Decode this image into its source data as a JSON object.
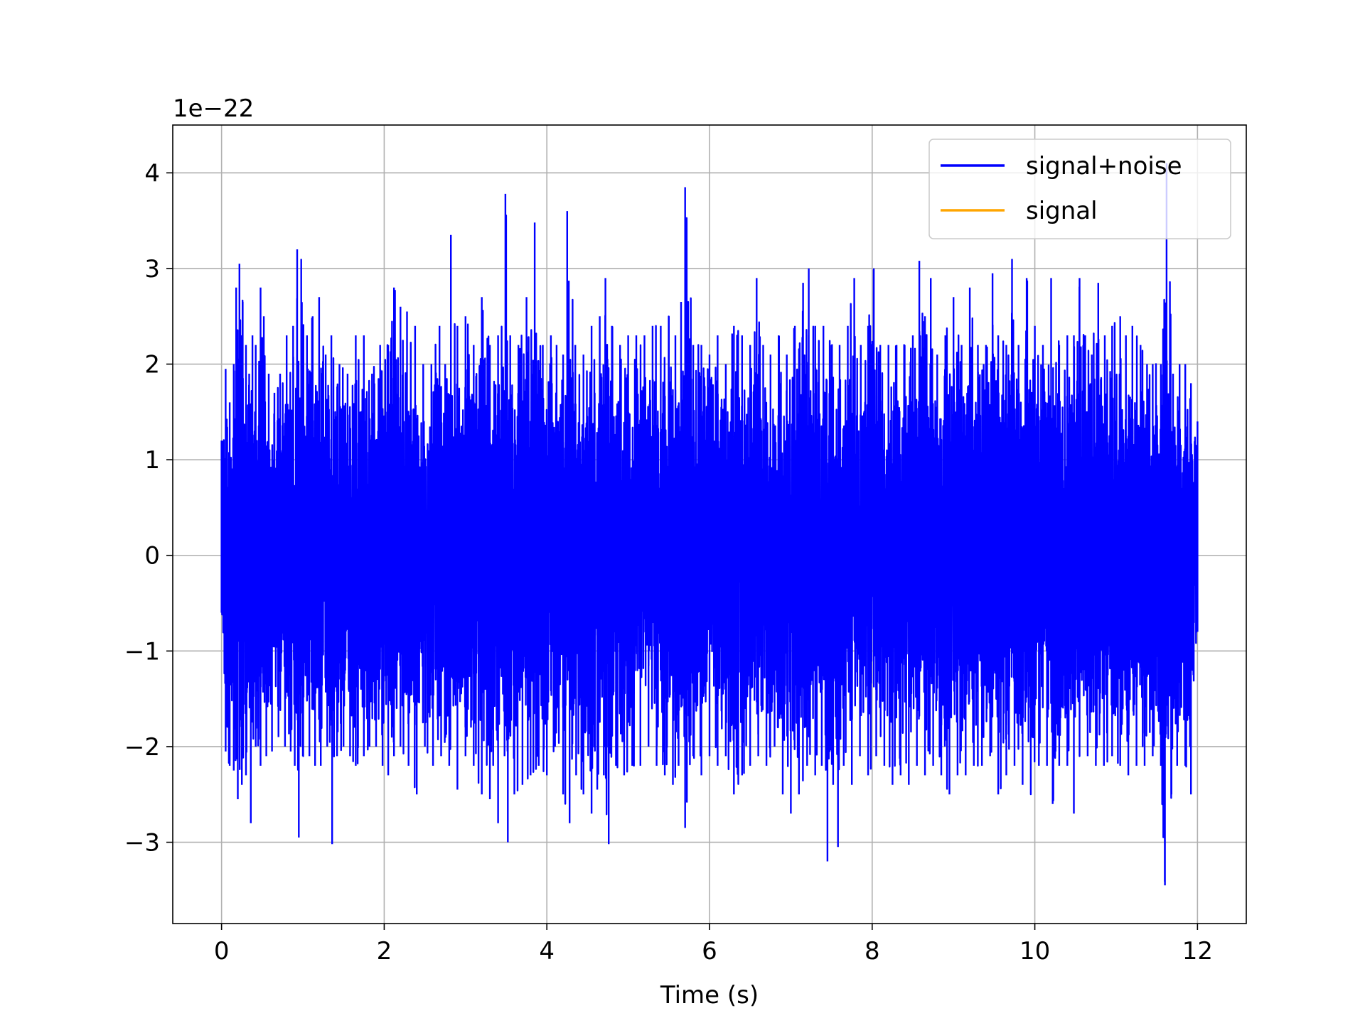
{
  "chart_data": {
    "type": "line",
    "title": "",
    "xlabel": "Time (s)",
    "ylabel": "",
    "y_offset_label": "1e−22",
    "xlim": [
      -0.6,
      12.6
    ],
    "ylim": [
      -3.85,
      4.5
    ],
    "xticks": [
      0,
      2,
      4,
      6,
      8,
      10,
      12
    ],
    "xtick_labels": [
      "0",
      "2",
      "4",
      "6",
      "8",
      "10",
      "12"
    ],
    "yticks": [
      -3,
      -2,
      -1,
      0,
      1,
      2,
      3,
      4
    ],
    "ytick_labels": [
      "−3",
      "−2",
      "−1",
      "0",
      "1",
      "2",
      "3",
      "4"
    ],
    "grid": true,
    "legend_position": "top-right",
    "series": [
      {
        "name": "signal+noise",
        "color": "#0000ff",
        "x_range": [
          0,
          12
        ],
        "envelope_max": [
          [
            0.0,
            1.2
          ],
          [
            0.05,
            1.95
          ],
          [
            0.1,
            1.6
          ],
          [
            0.15,
            2.0
          ],
          [
            0.18,
            2.8
          ],
          [
            0.22,
            3.05
          ],
          [
            0.26,
            2.65
          ],
          [
            0.3,
            2.2
          ],
          [
            0.34,
            1.9
          ],
          [
            0.38,
            2.3
          ],
          [
            0.42,
            2.2
          ],
          [
            0.48,
            2.8
          ],
          [
            0.52,
            2.5
          ],
          [
            0.58,
            1.9
          ],
          [
            0.65,
            1.7
          ],
          [
            0.72,
            1.9
          ],
          [
            0.8,
            2.3
          ],
          [
            0.88,
            2.4
          ],
          [
            0.93,
            3.2
          ],
          [
            0.98,
            3.1
          ],
          [
            1.05,
            2.3
          ],
          [
            1.12,
            2.5
          ],
          [
            1.2,
            2.7
          ],
          [
            1.28,
            2.1
          ],
          [
            1.35,
            2.3
          ],
          [
            1.45,
            2.0
          ],
          [
            1.55,
            1.9
          ],
          [
            1.65,
            2.3
          ],
          [
            1.75,
            2.3
          ],
          [
            1.85,
            1.9
          ],
          [
            1.95,
            2.2
          ],
          [
            2.05,
            2.2
          ],
          [
            2.12,
            2.8
          ],
          [
            2.2,
            2.6
          ],
          [
            2.28,
            2.55
          ],
          [
            2.38,
            2.4
          ],
          [
            2.48,
            2.0
          ],
          [
            2.58,
            2.0
          ],
          [
            2.68,
            2.4
          ],
          [
            2.75,
            2.0
          ],
          [
            2.82,
            3.35
          ],
          [
            2.9,
            2.4
          ],
          [
            3.0,
            2.5
          ],
          [
            3.1,
            2.2
          ],
          [
            3.2,
            2.7
          ],
          [
            3.3,
            2.2
          ],
          [
            3.4,
            2.3
          ],
          [
            3.49,
            3.78
          ],
          [
            3.55,
            2.3
          ],
          [
            3.65,
            2.2
          ],
          [
            3.75,
            2.7
          ],
          [
            3.85,
            3.48
          ],
          [
            3.95,
            2.2
          ],
          [
            4.05,
            2.3
          ],
          [
            4.12,
            2.2
          ],
          [
            4.2,
            2.1
          ],
          [
            4.25,
            3.6
          ],
          [
            4.35,
            2.2
          ],
          [
            4.45,
            2.1
          ],
          [
            4.55,
            2.4
          ],
          [
            4.65,
            2.5
          ],
          [
            4.72,
            2.9
          ],
          [
            4.8,
            2.4
          ],
          [
            4.9,
            2.2
          ],
          [
            5.0,
            2.3
          ],
          [
            5.1,
            2.3
          ],
          [
            5.2,
            2.3
          ],
          [
            5.3,
            2.4
          ],
          [
            5.4,
            2.4
          ],
          [
            5.5,
            2.5
          ],
          [
            5.58,
            2.3
          ],
          [
            5.65,
            2.65
          ],
          [
            5.7,
            3.85
          ],
          [
            5.8,
            2.2
          ],
          [
            5.9,
            2.2
          ],
          [
            6.0,
            2.1
          ],
          [
            6.1,
            2.3
          ],
          [
            6.2,
            2.0
          ],
          [
            6.3,
            2.4
          ],
          [
            6.4,
            2.3
          ],
          [
            6.5,
            2.2
          ],
          [
            6.58,
            2.9
          ],
          [
            6.66,
            2.2
          ],
          [
            6.75,
            2.1
          ],
          [
            6.85,
            2.3
          ],
          [
            6.95,
            2.1
          ],
          [
            7.05,
            2.4
          ],
          [
            7.15,
            2.85
          ],
          [
            7.22,
            3.0
          ],
          [
            7.3,
            2.4
          ],
          [
            7.4,
            2.4
          ],
          [
            7.5,
            2.2
          ],
          [
            7.6,
            2.2
          ],
          [
            7.7,
            2.4
          ],
          [
            7.78,
            2.9
          ],
          [
            7.86,
            2.2
          ],
          [
            7.95,
            2.4
          ],
          [
            8.02,
            3.0
          ],
          [
            8.1,
            2.2
          ],
          [
            8.2,
            2.2
          ],
          [
            8.3,
            2.2
          ],
          [
            8.4,
            2.2
          ],
          [
            8.5,
            2.3
          ],
          [
            8.58,
            3.08
          ],
          [
            8.65,
            2.5
          ],
          [
            8.72,
            2.9
          ],
          [
            8.8,
            2.1
          ],
          [
            8.9,
            2.3
          ],
          [
            9.0,
            2.7
          ],
          [
            9.1,
            2.2
          ],
          [
            9.2,
            2.8
          ],
          [
            9.3,
            2.2
          ],
          [
            9.4,
            2.2
          ],
          [
            9.48,
            2.95
          ],
          [
            9.55,
            2.3
          ],
          [
            9.65,
            2.2
          ],
          [
            9.72,
            3.1
          ],
          [
            9.8,
            2.2
          ],
          [
            9.9,
            2.9
          ],
          [
            10.0,
            2.4
          ],
          [
            10.1,
            2.2
          ],
          [
            10.2,
            2.9
          ],
          [
            10.3,
            2.2
          ],
          [
            10.4,
            2.3
          ],
          [
            10.48,
            2.3
          ],
          [
            10.55,
            2.9
          ],
          [
            10.62,
            2.3
          ],
          [
            10.7,
            2.1
          ],
          [
            10.78,
            2.85
          ],
          [
            10.86,
            2.3
          ],
          [
            10.95,
            2.4
          ],
          [
            11.05,
            2.5
          ],
          [
            11.12,
            2.3
          ],
          [
            11.2,
            2.4
          ],
          [
            11.3,
            2.2
          ],
          [
            11.38,
            2.0
          ],
          [
            11.45,
            2.0
          ],
          [
            11.55,
            2.0
          ],
          [
            11.62,
            4.1
          ],
          [
            11.7,
            1.9
          ],
          [
            11.78,
            2.0
          ],
          [
            11.85,
            2.0
          ],
          [
            11.92,
            1.8
          ],
          [
            12.0,
            1.4
          ]
        ],
        "envelope_min": [
          [
            0.0,
            -0.6
          ],
          [
            0.05,
            -2.05
          ],
          [
            0.1,
            -2.2
          ],
          [
            0.15,
            -2.25
          ],
          [
            0.2,
            -2.55
          ],
          [
            0.25,
            -2.4
          ],
          [
            0.3,
            -2.3
          ],
          [
            0.36,
            -2.8
          ],
          [
            0.42,
            -2.0
          ],
          [
            0.48,
            -2.2
          ],
          [
            0.55,
            -2.1
          ],
          [
            0.62,
            -2.05
          ],
          [
            0.7,
            -1.9
          ],
          [
            0.78,
            -2.0
          ],
          [
            0.85,
            -2.05
          ],
          [
            0.9,
            -2.2
          ],
          [
            0.95,
            -2.95
          ],
          [
            1.0,
            -2.1
          ],
          [
            1.08,
            -2.1
          ],
          [
            1.15,
            -2.2
          ],
          [
            1.22,
            -2.2
          ],
          [
            1.3,
            -2.0
          ],
          [
            1.36,
            -3.02
          ],
          [
            1.42,
            -2.1
          ],
          [
            1.5,
            -2.0
          ],
          [
            1.58,
            -2.1
          ],
          [
            1.65,
            -2.2
          ],
          [
            1.75,
            -2.1
          ],
          [
            1.82,
            -2.0
          ],
          [
            1.9,
            -2.0
          ],
          [
            1.98,
            -2.2
          ],
          [
            2.05,
            -2.3
          ],
          [
            2.12,
            -2.1
          ],
          [
            2.2,
            -2.0
          ],
          [
            2.3,
            -2.2
          ],
          [
            2.4,
            -2.5
          ],
          [
            2.5,
            -2.0
          ],
          [
            2.6,
            -2.2
          ],
          [
            2.7,
            -2.1
          ],
          [
            2.8,
            -2.2
          ],
          [
            2.9,
            -2.45
          ],
          [
            3.0,
            -2.1
          ],
          [
            3.1,
            -2.2
          ],
          [
            3.2,
            -2.5
          ],
          [
            3.3,
            -2.55
          ],
          [
            3.4,
            -2.8
          ],
          [
            3.48,
            -2.1
          ],
          [
            3.52,
            -3.0
          ],
          [
            3.6,
            -2.5
          ],
          [
            3.7,
            -2.4
          ],
          [
            3.8,
            -2.3
          ],
          [
            3.9,
            -2.2
          ],
          [
            4.0,
            -2.3
          ],
          [
            4.1,
            -2.0
          ],
          [
            4.2,
            -2.5
          ],
          [
            4.28,
            -2.8
          ],
          [
            4.36,
            -2.3
          ],
          [
            4.45,
            -2.5
          ],
          [
            4.55,
            -2.7
          ],
          [
            4.62,
            -2.45
          ],
          [
            4.7,
            -2.3
          ],
          [
            4.76,
            -3.02
          ],
          [
            4.85,
            -2.2
          ],
          [
            4.95,
            -2.3
          ],
          [
            5.05,
            -2.2
          ],
          [
            5.15,
            -2.2
          ],
          [
            5.25,
            -2.0
          ],
          [
            5.35,
            -2.2
          ],
          [
            5.45,
            -2.3
          ],
          [
            5.55,
            -2.4
          ],
          [
            5.62,
            -2.2
          ],
          [
            5.7,
            -2.85
          ],
          [
            5.8,
            -2.1
          ],
          [
            5.9,
            -2.3
          ],
          [
            6.0,
            -2.1
          ],
          [
            6.1,
            -2.2
          ],
          [
            6.2,
            -2.1
          ],
          [
            6.3,
            -2.5
          ],
          [
            6.4,
            -2.3
          ],
          [
            6.5,
            -2.2
          ],
          [
            6.6,
            -2.1
          ],
          [
            6.7,
            -2.2
          ],
          [
            6.8,
            -2.0
          ],
          [
            6.9,
            -2.5
          ],
          [
            7.0,
            -2.7
          ],
          [
            7.1,
            -2.5
          ],
          [
            7.2,
            -2.2
          ],
          [
            7.3,
            -2.3
          ],
          [
            7.38,
            -2.2
          ],
          [
            7.45,
            -3.2
          ],
          [
            7.52,
            -2.4
          ],
          [
            7.58,
            -3.05
          ],
          [
            7.65,
            -2.2
          ],
          [
            7.75,
            -2.4
          ],
          [
            7.85,
            -2.1
          ],
          [
            7.95,
            -2.3
          ],
          [
            8.05,
            -2.1
          ],
          [
            8.15,
            -2.2
          ],
          [
            8.25,
            -2.4
          ],
          [
            8.35,
            -2.3
          ],
          [
            8.45,
            -2.4
          ],
          [
            8.55,
            -2.2
          ],
          [
            8.65,
            -2.3
          ],
          [
            8.75,
            -2.2
          ],
          [
            8.85,
            -2.3
          ],
          [
            8.95,
            -2.5
          ],
          [
            9.05,
            -2.3
          ],
          [
            9.15,
            -2.3
          ],
          [
            9.25,
            -2.2
          ],
          [
            9.35,
            -2.2
          ],
          [
            9.45,
            -2.1
          ],
          [
            9.55,
            -2.5
          ],
          [
            9.65,
            -2.3
          ],
          [
            9.75,
            -2.2
          ],
          [
            9.85,
            -2.4
          ],
          [
            9.95,
            -2.5
          ],
          [
            10.05,
            -2.2
          ],
          [
            10.15,
            -2.2
          ],
          [
            10.22,
            -2.6
          ],
          [
            10.3,
            -2.2
          ],
          [
            10.4,
            -2.2
          ],
          [
            10.48,
            -2.7
          ],
          [
            10.55,
            -2.1
          ],
          [
            10.65,
            -2.1
          ],
          [
            10.75,
            -2.2
          ],
          [
            10.85,
            -2.2
          ],
          [
            10.95,
            -2.1
          ],
          [
            11.05,
            -2.2
          ],
          [
            11.15,
            -2.3
          ],
          [
            11.25,
            -2.2
          ],
          [
            11.35,
            -2.2
          ],
          [
            11.45,
            -2.1
          ],
          [
            11.55,
            -2.2
          ],
          [
            11.6,
            -3.45
          ],
          [
            11.68,
            -2.5
          ],
          [
            11.75,
            -2.2
          ],
          [
            11.85,
            -2.2
          ],
          [
            11.92,
            -2.5
          ],
          [
            12.0,
            -0.8
          ]
        ]
      },
      {
        "name": "signal",
        "color": "#ffa500",
        "x_range": [
          0,
          12
        ],
        "values": "not visible (hidden beneath signal+noise)"
      }
    ]
  }
}
